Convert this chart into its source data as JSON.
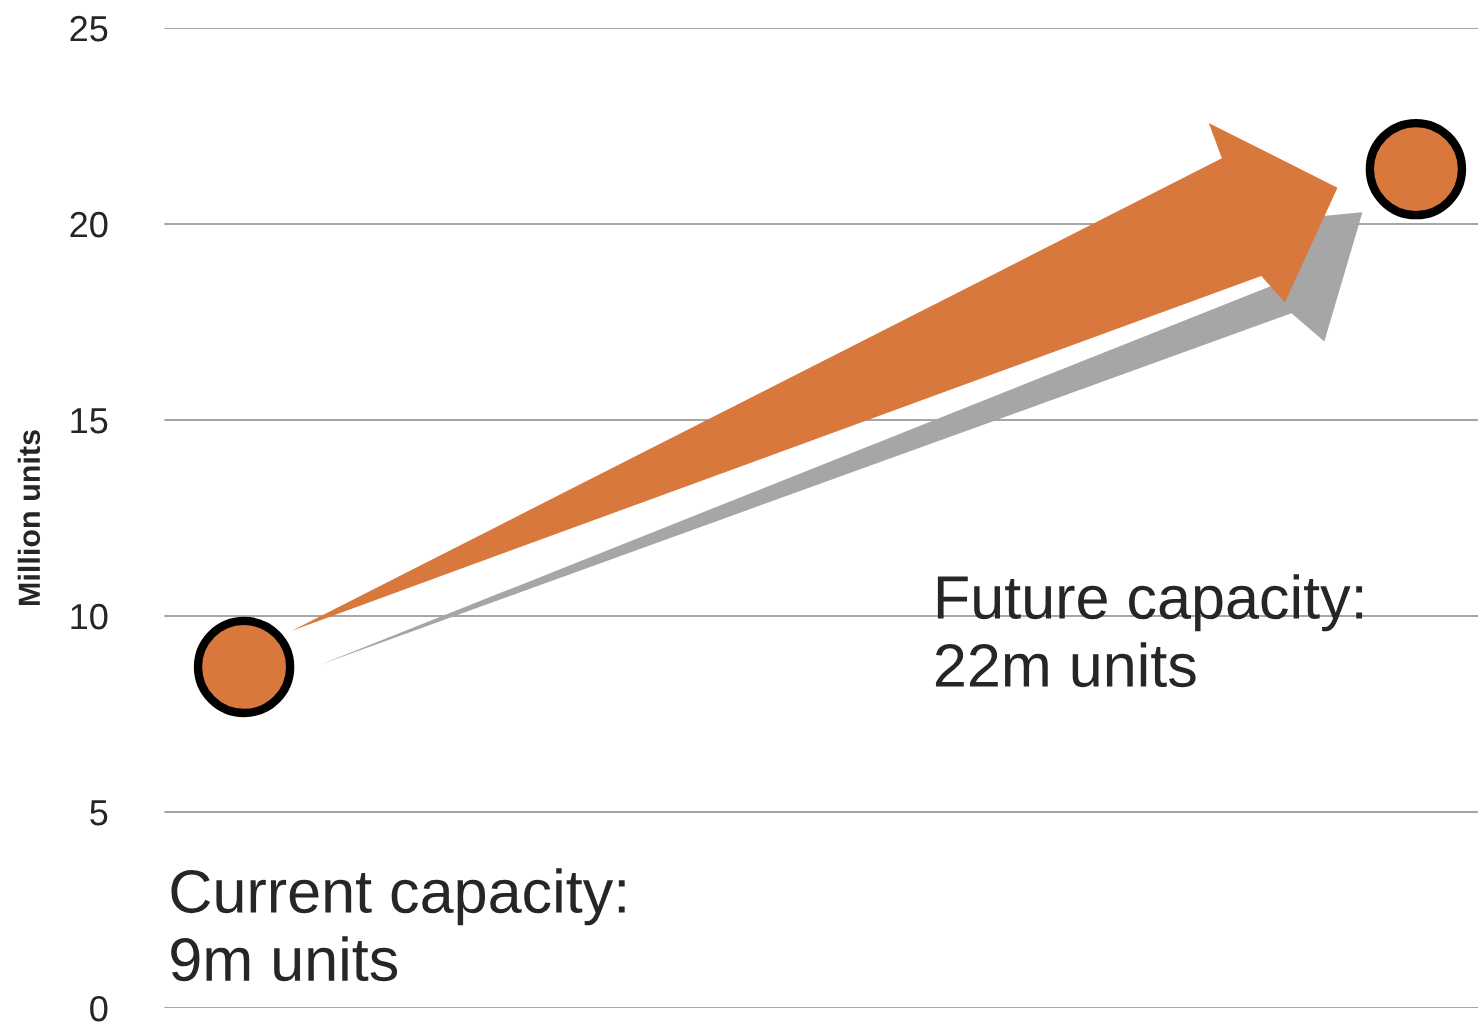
{
  "chart_data": {
    "type": "scatter",
    "ylabel": "Million units",
    "categories": [
      null,
      null
    ],
    "series": [
      {
        "color": "#d9783d",
        "values": [
          8.7,
          21.4
        ]
      }
    ],
    "ylim": [
      0,
      25
    ],
    "yticks": [
      0,
      5,
      10,
      15,
      20,
      25
    ],
    "grid": "y",
    "marker": "circle",
    "annotations": [
      "Current capacity:\n9m units",
      "Future capacity:\n22m units"
    ]
  }
}
